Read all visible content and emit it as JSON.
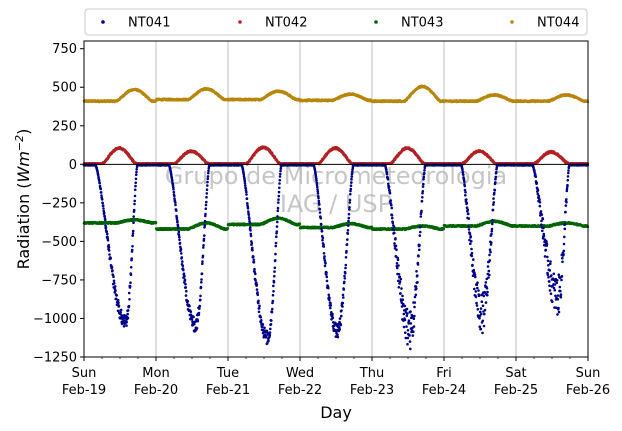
{
  "chart_data": {
    "type": "scatter",
    "xlabel": "Day",
    "ylabel": "Radiation (Wm⁻²)",
    "ylabel_main": "Radiation (",
    "ylabel_unit": "Wm",
    "ylabel_exp": "−2",
    "ylabel_close": ")",
    "xlim": [
      0,
      7
    ],
    "ylim": [
      -1250,
      800
    ],
    "yticks": [
      -1250,
      -1000,
      -750,
      -500,
      -250,
      0,
      250,
      500,
      750
    ],
    "ytick_labels": [
      "−1250",
      "−1000",
      "−750",
      "−500",
      "−250",
      "0",
      "250",
      "500",
      "750"
    ],
    "xtick_days": [
      0,
      1,
      2,
      3,
      4,
      5,
      6,
      7
    ],
    "xtick_labels": [
      {
        "day": "Sun",
        "date": "Feb-19"
      },
      {
        "day": "Mon",
        "date": "Feb-20"
      },
      {
        "day": "Tue",
        "date": "Feb-21"
      },
      {
        "day": "Wed",
        "date": "Feb-22"
      },
      {
        "day": "Thu",
        "date": "Feb-23"
      },
      {
        "day": "Fri",
        "date": "Feb-24"
      },
      {
        "day": "Sat",
        "date": "Feb-25"
      },
      {
        "day": "Sun",
        "date": "Feb-26"
      }
    ],
    "grid": "vertical",
    "legend_position": "top",
    "zero_line": true,
    "watermark": [
      "Grupo de Micrometeorologia",
      "IAG / USP"
    ],
    "series": [
      {
        "name": "NT041",
        "color": "#00008b",
        "baseline": -5,
        "day_minima": [
          -1020,
          -1040,
          -1120,
          -1080,
          -1070,
          -960,
          -850
        ],
        "day_start": [
          0.16,
          0.18,
          0.19,
          0.19,
          0.18,
          0.24,
          0.23
        ],
        "day_end": [
          0.74,
          0.74,
          0.74,
          0.74,
          0.74,
          0.74,
          0.74
        ],
        "day_peak": [
          0.58,
          0.55,
          0.55,
          0.52,
          0.53,
          0.53,
          0.58
        ]
      },
      {
        "name": "NT042",
        "color": "#b22222",
        "baseline": 5,
        "day_peaks": [
          100,
          80,
          105,
          100,
          100,
          80,
          75
        ],
        "day_start": [
          0.26,
          0.26,
          0.26,
          0.26,
          0.26,
          0.26,
          0.26
        ],
        "day_end": [
          0.72,
          0.72,
          0.72,
          0.72,
          0.72,
          0.72,
          0.72
        ]
      },
      {
        "name": "NT043",
        "color": "#006400",
        "baseline": -405,
        "day_means": [
          -380,
          -420,
          -390,
          -410,
          -420,
          -400,
          -400
        ],
        "afternoon_bump": [
          20,
          40,
          40,
          25,
          20,
          30,
          20
        ]
      },
      {
        "name": "NT044",
        "color": "#b8860b",
        "baseline": 410,
        "day_means": [
          410,
          420,
          420,
          415,
          410,
          410,
          410
        ],
        "afternoon_bump": [
          75,
          70,
          55,
          40,
          95,
          40,
          40
        ]
      }
    ]
  }
}
